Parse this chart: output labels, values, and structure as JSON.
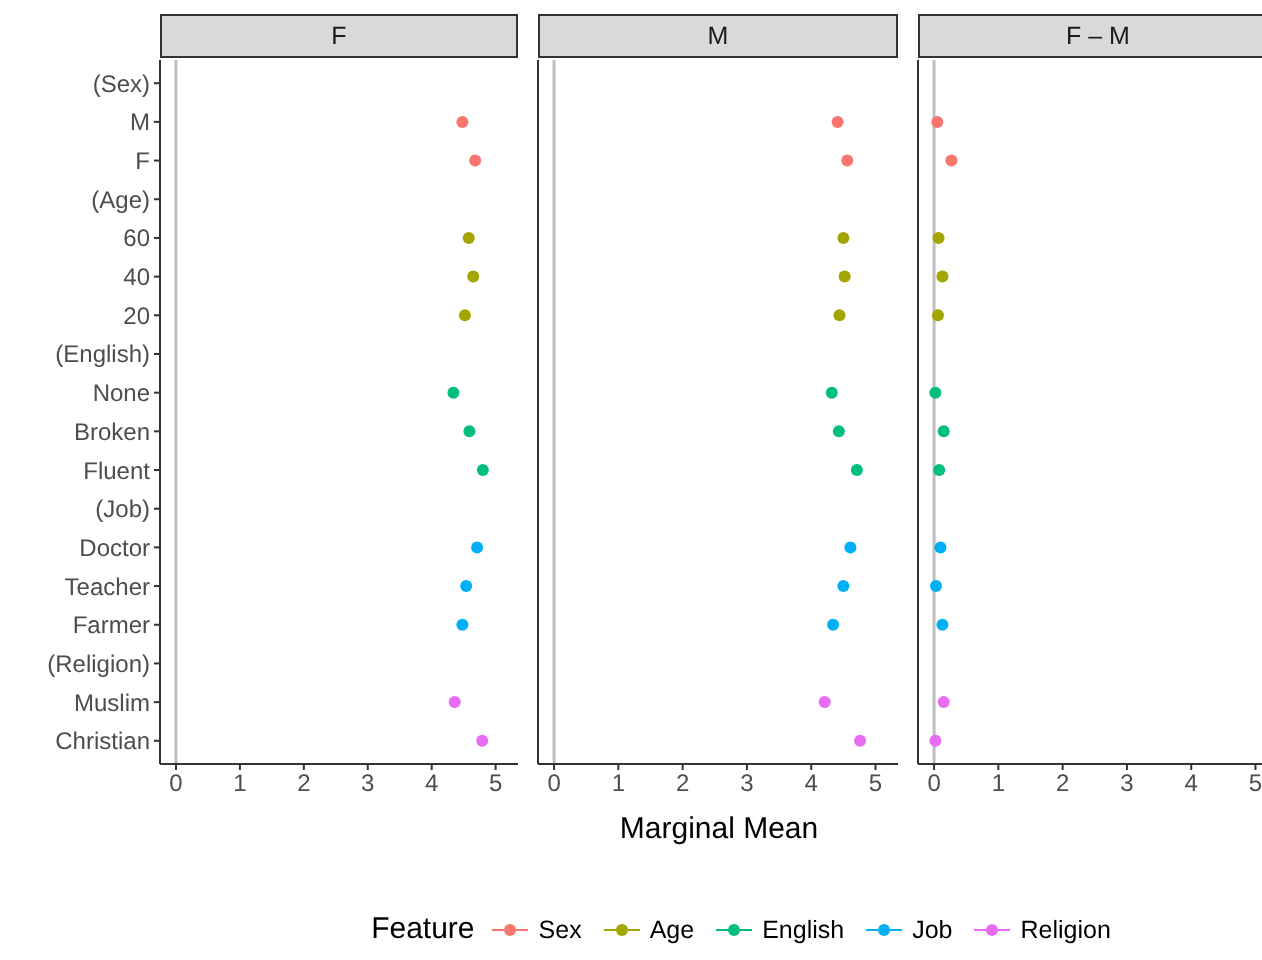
{
  "chart_data": [
    {
      "type": "scatter",
      "title": "F",
      "orientation": "horizontal",
      "marker": "circle",
      "legend": "bottom",
      "legend_title": "Feature",
      "categories": [
        "(Sex)",
        "M",
        "F",
        "(Age)",
        "60",
        "40",
        "20",
        "(English)",
        "None",
        "Broken",
        "Fluent",
        "(Job)",
        "Doctor",
        "Teacher",
        "Farmer",
        "(Religion)",
        "Muslim",
        "Christian"
      ],
      "xlim": [
        -0.25,
        5.35
      ],
      "xticks": [
        0,
        1,
        2,
        3,
        4,
        5
      ],
      "ref_lines": [
        {
          "axis": "x",
          "value": 0,
          "color": "#bebebe"
        }
      ],
      "series": [
        {
          "name": "Sex",
          "color": "#f8766d",
          "values": [
            null,
            4.48,
            4.68,
            null,
            null,
            null,
            null,
            null,
            null,
            null,
            null,
            null,
            null,
            null,
            null,
            null,
            null,
            null
          ]
        },
        {
          "name": "Age",
          "color": "#a3a500",
          "values": [
            null,
            null,
            null,
            null,
            4.58,
            4.65,
            4.52,
            null,
            null,
            null,
            null,
            null,
            null,
            null,
            null,
            null,
            null,
            null
          ]
        },
        {
          "name": "English",
          "color": "#00bf7d",
          "values": [
            null,
            null,
            null,
            null,
            null,
            null,
            null,
            null,
            4.34,
            4.59,
            4.8,
            null,
            null,
            null,
            null,
            null,
            null,
            null
          ]
        },
        {
          "name": "Job",
          "color": "#00b0f6",
          "values": [
            null,
            null,
            null,
            null,
            null,
            null,
            null,
            null,
            null,
            null,
            null,
            null,
            4.71,
            4.54,
            4.48,
            null,
            null,
            null
          ]
        },
        {
          "name": "Religion",
          "color": "#e76bf3",
          "values": [
            null,
            null,
            null,
            null,
            null,
            null,
            null,
            null,
            null,
            null,
            null,
            null,
            null,
            null,
            null,
            null,
            4.36,
            4.79
          ]
        }
      ]
    },
    {
      "type": "scatter",
      "title": "M",
      "orientation": "horizontal",
      "marker": "circle",
      "tick_labels": "x",
      "xlabel": "Marginal Mean",
      "xlim": [
        -0.25,
        5.35
      ],
      "xticks": [
        0,
        1,
        2,
        3,
        4,
        5
      ],
      "ref_lines": [
        {
          "axis": "x",
          "value": 0,
          "color": "#bebebe"
        }
      ],
      "series": [
        {
          "color": "#f8766d",
          "values": [
            null,
            4.41,
            4.56,
            null,
            null,
            null,
            null,
            null,
            null,
            null,
            null,
            null,
            null,
            null,
            null,
            null,
            null,
            null
          ]
        },
        {
          "color": "#a3a500",
          "values": [
            null,
            null,
            null,
            null,
            4.5,
            4.52,
            4.44,
            null,
            null,
            null,
            null,
            null,
            null,
            null,
            null,
            null,
            null,
            null
          ]
        },
        {
          "color": "#00bf7d",
          "values": [
            null,
            null,
            null,
            null,
            null,
            null,
            null,
            null,
            4.32,
            4.43,
            4.71,
            null,
            null,
            null,
            null,
            null,
            null,
            null
          ]
        },
        {
          "color": "#00b0f6",
          "values": [
            null,
            null,
            null,
            null,
            null,
            null,
            null,
            null,
            null,
            null,
            null,
            null,
            4.61,
            4.5,
            4.34,
            null,
            null,
            null
          ]
        },
        {
          "color": "#e76bf3",
          "values": [
            null,
            null,
            null,
            null,
            null,
            null,
            null,
            null,
            null,
            null,
            null,
            null,
            null,
            null,
            null,
            null,
            4.21,
            4.76
          ]
        }
      ]
    },
    {
      "type": "scatter",
      "title": "F – M",
      "orientation": "horizontal",
      "marker": "circle",
      "tick_labels": "x",
      "xlim": [
        -0.25,
        5.35
      ],
      "xticks": [
        0,
        1,
        2,
        3,
        4,
        5
      ],
      "ref_lines": [
        {
          "axis": "x",
          "value": 0,
          "color": "#bebebe"
        }
      ],
      "series": [
        {
          "color": "#f8766d",
          "values": [
            null,
            0.05,
            0.27,
            null,
            null,
            null,
            null,
            null,
            null,
            null,
            null,
            null,
            null,
            null,
            null,
            null,
            null,
            null
          ]
        },
        {
          "color": "#a3a500",
          "values": [
            null,
            null,
            null,
            null,
            0.07,
            0.13,
            0.06,
            null,
            null,
            null,
            null,
            null,
            null,
            null,
            null,
            null,
            null,
            null
          ]
        },
        {
          "color": "#00bf7d",
          "values": [
            null,
            null,
            null,
            null,
            null,
            null,
            null,
            null,
            0.02,
            0.15,
            0.08,
            null,
            null,
            null,
            null,
            null,
            null,
            null
          ]
        },
        {
          "color": "#00b0f6",
          "values": [
            null,
            null,
            null,
            null,
            null,
            null,
            null,
            null,
            null,
            null,
            null,
            null,
            0.1,
            0.03,
            0.13,
            null,
            null,
            null
          ]
        },
        {
          "color": "#e76bf3",
          "values": [
            null,
            null,
            null,
            null,
            null,
            null,
            null,
            null,
            null,
            null,
            null,
            null,
            null,
            null,
            null,
            null,
            0.15,
            0.02
          ]
        }
      ]
    }
  ]
}
